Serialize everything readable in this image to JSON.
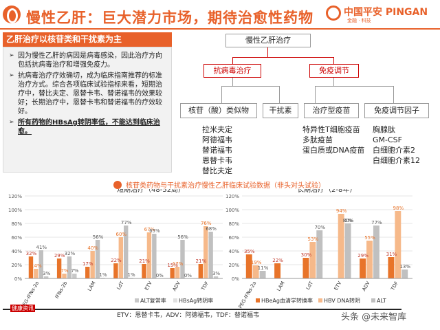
{
  "header": {
    "title": "慢性乙肝：巨大潜力市场，期待治愈性药物",
    "logo_text": "中国平安 PINGAN",
    "logo_sub": "金融 · 科技"
  },
  "left": {
    "heading": "乙肝治疗以核苷类和干扰素为主",
    "bullets": [
      "因为慢性乙肝的病因是病毒感染，因此治疗方向包括抗病毒治疗和增强免疫力。",
      "抗病毒治疗疗效确切，成为临床指南推荐的标准治疗方式。综合各项临床试验指标来看，短期治疗中，替比夫定、恩替卡韦、替诺福韦的效果较好；长期治疗中，恩替卡韦和替诺福韦的疗效较好。",
      "所有药物的HBsAg转阴率低，不能达到临床治愈。"
    ]
  },
  "tree": {
    "root": "慢性乙肝治疗",
    "mid": [
      "抗病毒治疗",
      "免疫调节"
    ],
    "leaves": [
      "核苷（酸）类似物",
      "干扰素",
      "治疗型疫苗",
      "免疫调节因子"
    ],
    "drugs_nuc": [
      "拉米夫定",
      "阿德福韦",
      "替诺福韦",
      "恩替卡韦",
      "替比夫定"
    ],
    "drugs_vac": [
      "特异性T细胞疫苗",
      "多肽疫苗",
      "蛋白质或DNA疫苗"
    ],
    "drugs_imm": [
      "胸腺肽",
      "GM-CSF",
      "白细胞介素2",
      "白细胞介素12"
    ]
  },
  "chart_section": {
    "title": "核苷类药物与干扰素治疗慢性乙肝临床试验数据（非头对头试验）"
  },
  "chart_data": [
    {
      "type": "bar",
      "title": "短期治疗（48-52周）",
      "categories": [
        "PEG-IFNα-2a",
        "IFNα-2b",
        "LAM",
        "LdT",
        "ETV",
        "ADV",
        "TDF"
      ],
      "ylim": [
        0,
        120
      ],
      "yticks": [
        "0%",
        "20%",
        "40%",
        "60%",
        "80%",
        "100%",
        "120%"
      ],
      "series": [
        {
          "name": "",
          "color": "#e8742a",
          "values": [
            32,
            29,
            17,
            22,
            21,
            15,
            21
          ]
        },
        {
          "name": "",
          "color": "#f6b98a",
          "values": [
            14,
            7,
            40,
            60,
            67,
            17,
            76
          ]
        },
        {
          "name": "",
          "color": "#c0c0c0",
          "values": [
            41,
            32,
            56,
            77,
            65,
            56,
            68
          ]
        },
        {
          "name": "ALT复常率",
          "color": "#c8c8c8",
          "values": [
            3,
            7,
            1,
            1,
            0,
            0,
            3
          ]
        },
        {
          "name": "HBsAg转阴率",
          "color": "#e0e0e0",
          "values": [
            0,
            0,
            0,
            0,
            0,
            0,
            0
          ]
        }
      ],
      "data_labels": [
        [
          "32%",
          "14%",
          "41%",
          "3%"
        ],
        [
          "29%",
          "7%",
          "32%",
          "7%"
        ],
        [
          "17%",
          "40%",
          "56%",
          "1%"
        ],
        [
          "22%",
          "60%",
          "77%",
          "1%"
        ],
        [
          "21%",
          "67%",
          "65%",
          "0%"
        ],
        [
          "15%",
          "17%",
          "56%",
          "0%"
        ],
        [
          "21%",
          "76%",
          "68%",
          "3%"
        ]
      ]
    },
    {
      "type": "bar",
      "title": "长期治疗（2-8年）",
      "categories": [
        "PEG-IFNα-2a",
        "LAM",
        "LdT",
        "ETV",
        "ADV",
        "TDF"
      ],
      "ylim": [
        0,
        120
      ],
      "yticks": [
        "0%",
        "20%",
        "40%",
        "60%",
        "80%",
        "100%",
        "120%"
      ],
      "series": [
        {
          "name": "HBeAg血清学转换率",
          "color": "#e8742a",
          "values": [
            35,
            22,
            30,
            0,
            29,
            31
          ]
        },
        {
          "name": "HBV DNA转阴",
          "color": "#f6b98a",
          "values": [
            19,
            0,
            53,
            94,
            55,
            98
          ]
        },
        {
          "name": "ALT",
          "color": "#c0c0c0",
          "values": [
            11,
            0,
            70,
            80,
            77,
            13
          ]
        }
      ],
      "data_labels": [
        [
          "35%",
          "19%",
          "11%"
        ],
        [
          "22%",
          "",
          ""
        ],
        [
          "30%",
          "53%",
          "70%"
        ],
        [
          "",
          "94%",
          "80%",
          "5%"
        ],
        [
          "29%",
          "55%",
          "77%"
        ],
        [
          "31%",
          "98%",
          "13%"
        ]
      ]
    }
  ],
  "footer": {
    "label": "健康资讯",
    "note": "ETV：恩替卡韦，ADV：阿德福韦，TDF：替诺福韦",
    "watermark": "头条 @未来智库"
  }
}
